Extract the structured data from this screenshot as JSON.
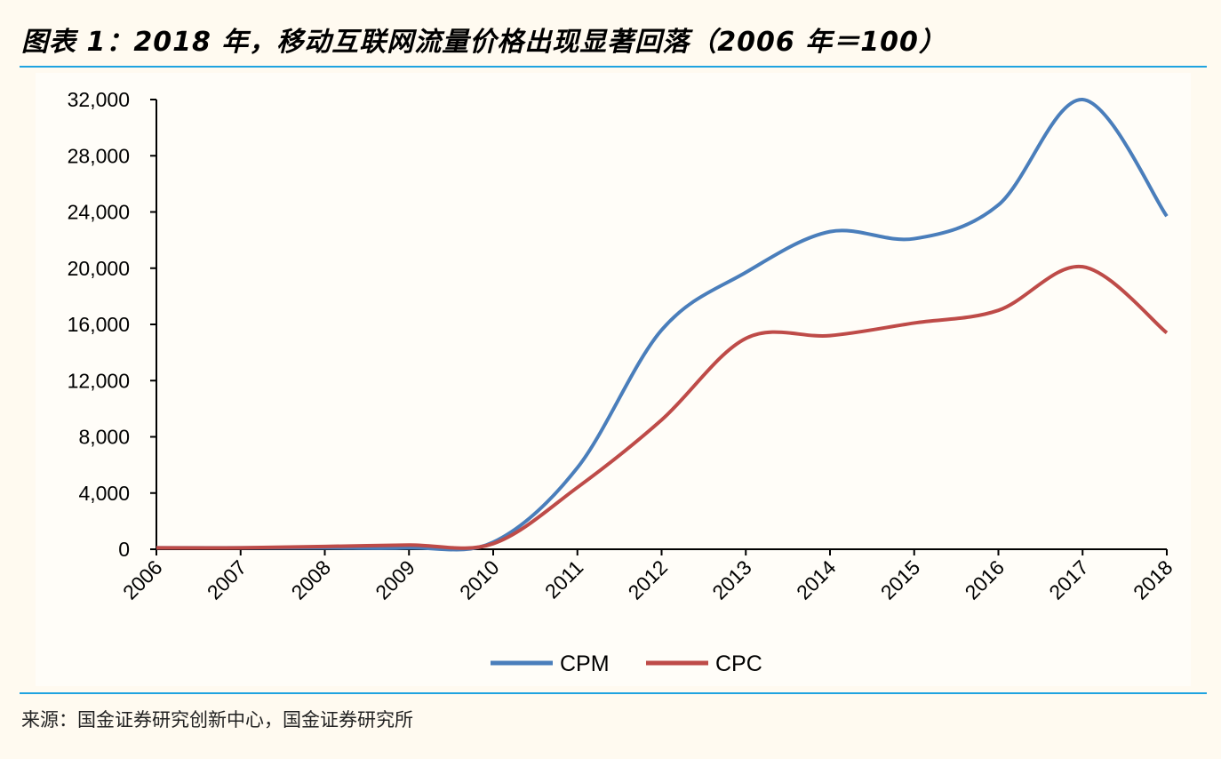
{
  "header": {
    "title": "图表 1：2018 年，移动互联网流量价格出现显著回落（2006 年＝100）"
  },
  "footer": {
    "source": "来源：国金证券研究创新中心，国金证券研究所"
  },
  "chart_data": {
    "type": "line",
    "title": "",
    "xlabel": "",
    "ylabel": "",
    "categories": [
      "2006",
      "2007",
      "2008",
      "2009",
      "2010",
      "2011",
      "2012",
      "2013",
      "2014",
      "2015",
      "2016",
      "2017",
      "2018"
    ],
    "ylim": [
      0,
      32000
    ],
    "yticks": [
      0,
      4000,
      8000,
      12000,
      16000,
      20000,
      24000,
      28000,
      32000
    ],
    "ytick_labels": [
      "0",
      "4,000",
      "8,000",
      "12,000",
      "16,000",
      "20,000",
      "24,000",
      "28,000",
      "32,000"
    ],
    "grid": false,
    "legend_position": "bottom",
    "smooth": true,
    "series": [
      {
        "name": "CPM",
        "color": "#4a7ebb",
        "values": [
          100,
          100,
          100,
          100,
          500,
          5800,
          15600,
          19700,
          22600,
          22100,
          24500,
          32000,
          23700
        ]
      },
      {
        "name": "CPC",
        "color": "#be4b48",
        "values": [
          100,
          100,
          200,
          300,
          400,
          4400,
          9200,
          15000,
          15200,
          16100,
          17000,
          20100,
          15400
        ]
      }
    ]
  }
}
